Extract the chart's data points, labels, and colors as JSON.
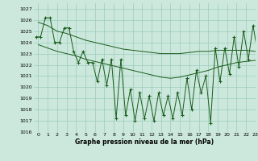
{
  "title": "Graphe pression niveau de la mer (hPa)",
  "bg_color": "#cce8dd",
  "grid_color": "#99ccbb",
  "line_color": "#1a5c1a",
  "ylim": [
    1016,
    1027.5
  ],
  "xlim": [
    -0.5,
    23
  ],
  "hours": [
    0,
    1,
    2,
    3,
    4,
    5,
    6,
    7,
    8,
    9,
    10,
    11,
    12,
    13,
    14,
    15,
    16,
    17,
    18,
    19,
    20,
    21,
    22,
    23
  ],
  "series2": [
    1025.8,
    1025.5,
    1025.0,
    1024.8,
    1024.5,
    1024.2,
    1024.0,
    1023.8,
    1023.6,
    1023.4,
    1023.3,
    1023.2,
    1023.1,
    1023.0,
    1023.0,
    1023.0,
    1023.1,
    1023.2,
    1023.2,
    1023.3,
    1023.3,
    1023.3,
    1023.3,
    1023.2
  ],
  "series3": [
    1023.8,
    1023.5,
    1023.2,
    1023.0,
    1022.8,
    1022.5,
    1022.3,
    1022.1,
    1021.9,
    1021.7,
    1021.5,
    1021.3,
    1021.1,
    1020.9,
    1020.8,
    1020.9,
    1021.1,
    1021.3,
    1021.5,
    1021.8,
    1022.0,
    1022.2,
    1022.3,
    1022.4
  ],
  "zigzag": [
    0,
    1,
    2,
    3,
    4,
    5,
    6,
    7,
    8,
    9,
    10,
    11,
    12,
    13,
    14,
    15,
    16,
    17,
    18,
    19,
    20,
    21,
    22,
    23
  ],
  "zigzag_hi": [
    1024.5,
    1026.2,
    1024.0,
    1025.3,
    1023.2,
    1023.2,
    1022.2,
    1022.5,
    1022.5,
    1022.5,
    1019.8,
    1019.5,
    1019.2,
    1019.5,
    1019.2,
    1019.5,
    1020.8,
    1021.5,
    1021.0,
    1023.5,
    1023.5,
    1024.5,
    1025.0,
    1025.5
  ],
  "zigzag_lo": [
    1024.5,
    1026.2,
    1024.0,
    1025.3,
    1022.2,
    1022.2,
    1020.5,
    1020.2,
    1017.2,
    1017.5,
    1017.0,
    1017.2,
    1017.0,
    1017.5,
    1017.2,
    1017.5,
    1018.0,
    1019.5,
    1016.8,
    1020.5,
    1021.2,
    1021.8,
    1022.5,
    1023.0
  ],
  "yticks": [
    1016,
    1017,
    1018,
    1019,
    1020,
    1021,
    1022,
    1023,
    1024,
    1025,
    1026,
    1027
  ]
}
